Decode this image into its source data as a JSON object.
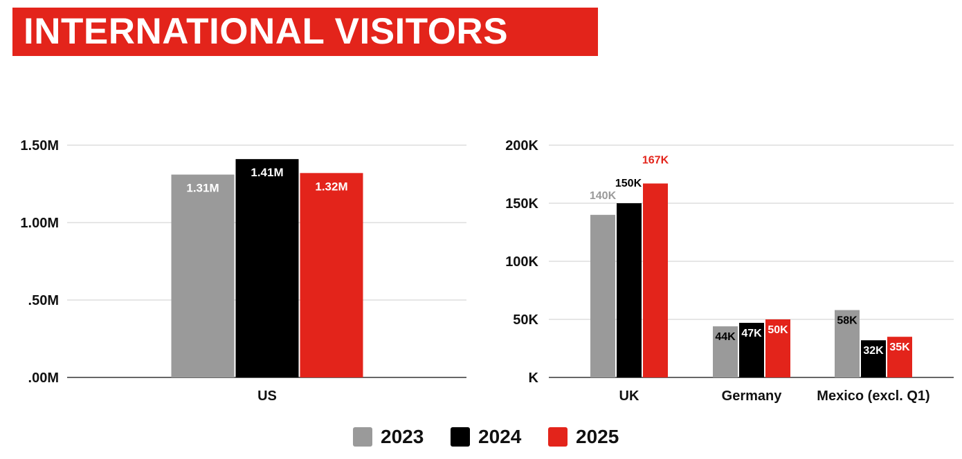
{
  "header": {
    "title": "INTERNATIONAL VISITORS"
  },
  "colors": {
    "2023": "#9a9a9a",
    "2024": "#000000",
    "2025": "#e3241b",
    "accent": "#e3241b",
    "grid": "#cccccc"
  },
  "legend": [
    {
      "label": "2023",
      "color": "#9a9a9a"
    },
    {
      "label": "2024",
      "color": "#000000"
    },
    {
      "label": "2025",
      "color": "#e3241b"
    }
  ],
  "chart_data": [
    {
      "type": "bar",
      "categories": [
        "US"
      ],
      "series": [
        {
          "name": "2023",
          "values": [
            1310000
          ],
          "labels": [
            "1.31M"
          ]
        },
        {
          "name": "2024",
          "values": [
            1410000
          ],
          "labels": [
            "1.41M"
          ]
        },
        {
          "name": "2025",
          "values": [
            1320000
          ],
          "labels": [
            "1.32M"
          ]
        }
      ],
      "ylim": [
        0,
        1500000
      ],
      "yticks": [
        0,
        500000,
        1000000,
        1500000
      ],
      "ytick_labels": [
        ".00M",
        ".50M",
        "1.00M",
        "1.50M"
      ],
      "grid": true,
      "legend": "bottom"
    },
    {
      "type": "bar",
      "categories": [
        "UK",
        "Germany",
        "Mexico (excl. Q1)"
      ],
      "series": [
        {
          "name": "2023",
          "values": [
            140000,
            44000,
            58000
          ],
          "labels": [
            "140K",
            "44K",
            "58K"
          ]
        },
        {
          "name": "2024",
          "values": [
            150000,
            47000,
            32000
          ],
          "labels": [
            "150K",
            "47K",
            "32K"
          ]
        },
        {
          "name": "2025",
          "values": [
            167000,
            50000,
            35000
          ],
          "labels": [
            "167K",
            "50K",
            "35K"
          ]
        }
      ],
      "ylim": [
        0,
        200000
      ],
      "yticks": [
        0,
        50000,
        100000,
        150000,
        200000
      ],
      "ytick_labels": [
        "K",
        "50K",
        "100K",
        "150K",
        "200K"
      ],
      "grid": true,
      "legend": "bottom"
    }
  ]
}
